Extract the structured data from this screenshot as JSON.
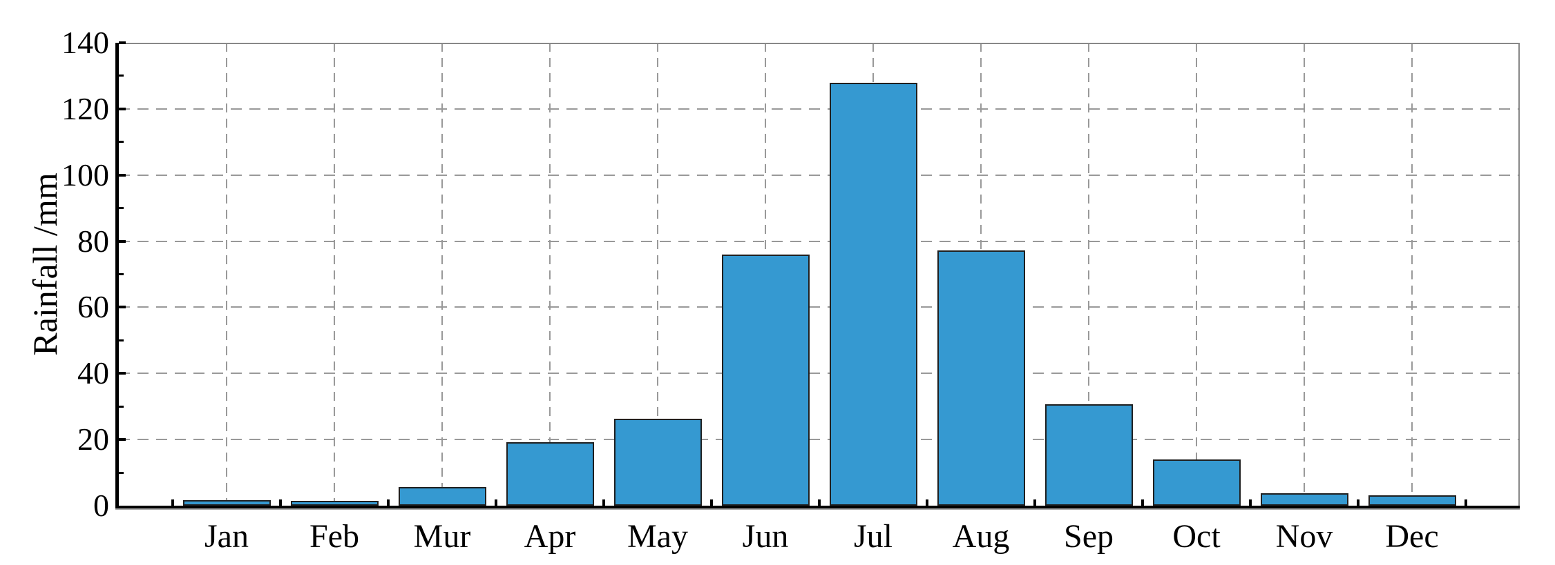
{
  "chart_data": {
    "type": "bar",
    "title": "",
    "categories": [
      "Jan",
      "Feb",
      "Mur",
      "Apr",
      "May",
      "Jun",
      "Jul",
      "Aug",
      "Sep",
      "Oct",
      "Nov",
      "Dec"
    ],
    "values": [
      1.6,
      1.4,
      5.6,
      19.2,
      26.3,
      76,
      128,
      77.2,
      30.6,
      14,
      3.7,
      3.2
    ],
    "xlabel": "",
    "ylabel": "Rainfall /mm",
    "ylim": [
      0,
      140
    ],
    "ytick_step": 20,
    "yticks": [
      0,
      20,
      40,
      60,
      80,
      100,
      120,
      140
    ],
    "yticklabels": [
      "0",
      "20",
      "40",
      "60",
      "80",
      "100",
      "120",
      "140"
    ],
    "yminor_step": 10,
    "grid": "dashed, horizontal at major y ticks and vertical at category centers",
    "legend": "none",
    "colors": {
      "bar_fill": "#3599D1",
      "bar_stroke": "#1F1F1F",
      "grid": "#999999",
      "axis": "#000000",
      "frame": "#888888",
      "background": "#FFFFFF"
    }
  }
}
